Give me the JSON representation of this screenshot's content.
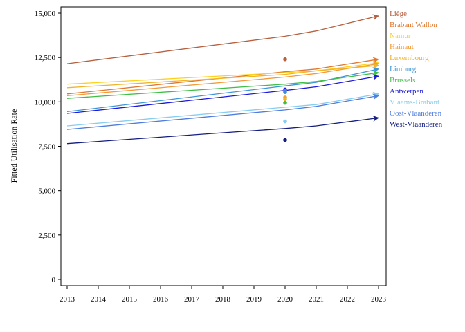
{
  "chart_data": {
    "type": "line",
    "title": "",
    "xlabel": "",
    "ylabel": "Fitted Utilisation Rate",
    "x": [
      2013,
      2014,
      2015,
      2016,
      2017,
      2018,
      2019,
      2020,
      2021,
      2022,
      2023
    ],
    "xlim": [
      2013,
      2023
    ],
    "ylim": [
      -300,
      15300
    ],
    "yticks": [
      0,
      2500,
      5000,
      7500,
      10000,
      12500,
      15000
    ],
    "yticklabels": [
      "0",
      "2,500",
      "5,000",
      "7,500",
      "10,000",
      "12,500",
      "15,000"
    ],
    "grid": false,
    "legend_position": "right",
    "series": [
      {
        "name": "Liège",
        "color": "#b5613f",
        "line": [
          [
            2013,
            12150
          ],
          [
            2020,
            13700
          ],
          [
            2021,
            14000
          ],
          [
            2023,
            14850
          ]
        ],
        "point": [
          2020,
          12400
        ]
      },
      {
        "name": "Brabant Wallon",
        "color": "#e0782f",
        "line": [
          [
            2013,
            10450
          ],
          [
            2020,
            11700
          ],
          [
            2021,
            11850
          ],
          [
            2023,
            12400
          ]
        ],
        "point": [
          2020,
          10600
        ]
      },
      {
        "name": "Namur",
        "color": "#ffd11a",
        "line": [
          [
            2013,
            11000
          ],
          [
            2020,
            11650
          ],
          [
            2021,
            11750
          ],
          [
            2023,
            12200
          ]
        ],
        "point": [
          2020,
          10700
        ]
      },
      {
        "name": "Hainaut",
        "color": "#f29b38",
        "line": [
          [
            2013,
            10350
          ],
          [
            2020,
            11400
          ],
          [
            2021,
            11600
          ],
          [
            2023,
            12150
          ]
        ],
        "point": [
          2020,
          10250
        ]
      },
      {
        "name": "Luxembourg",
        "color": "#f0b429",
        "line": [
          [
            2013,
            10800
          ],
          [
            2020,
            11550
          ],
          [
            2021,
            11750
          ],
          [
            2023,
            12050
          ]
        ],
        "point": [
          2020,
          10150
        ]
      },
      {
        "name": "Limburg",
        "color": "#3d96d6",
        "line": [
          [
            2013,
            9450
          ],
          [
            2020,
            10900
          ],
          [
            2021,
            11100
          ],
          [
            2023,
            11850
          ]
        ],
        "point": [
          2020,
          10550
        ]
      },
      {
        "name": "Brussels",
        "color": "#3fbf46",
        "line": [
          [
            2013,
            10200
          ],
          [
            2020,
            11000
          ],
          [
            2021,
            11150
          ],
          [
            2023,
            11650
          ]
        ],
        "point": [
          2020,
          9950
        ]
      },
      {
        "name": "Antwerpen",
        "color": "#1a1adb",
        "line": [
          [
            2013,
            9350
          ],
          [
            2020,
            10650
          ],
          [
            2021,
            10850
          ],
          [
            2023,
            11450
          ]
        ],
        "point": [
          2020,
          10700
        ]
      },
      {
        "name": "Vlaams-Brabant",
        "color": "#87cdf0",
        "line": [
          [
            2013,
            8650
          ],
          [
            2020,
            9700
          ],
          [
            2021,
            9850
          ],
          [
            2023,
            10450
          ]
        ],
        "point": [
          2020,
          8900
        ]
      },
      {
        "name": "Oost-Vlaanderen",
        "color": "#4f7ede",
        "line": [
          [
            2013,
            8450
          ],
          [
            2020,
            9550
          ],
          [
            2021,
            9750
          ],
          [
            2023,
            10350
          ]
        ],
        "point": [
          2020,
          10650
        ]
      },
      {
        "name": "West-Vlaanderen",
        "color": "#141e80",
        "line": [
          [
            2013,
            7650
          ],
          [
            2020,
            8500
          ],
          [
            2021,
            8650
          ],
          [
            2023,
            9100
          ]
        ],
        "point": [
          2020,
          7850
        ]
      }
    ]
  }
}
